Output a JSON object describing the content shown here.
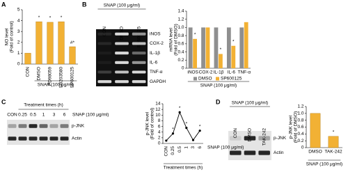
{
  "panel_labels": [
    "A",
    "B",
    "C",
    "D"
  ],
  "blots": [
    {
      "header": "SNAP (100 μg/ml)",
      "lanes": [
        "CON",
        "DMSO",
        "SP600125"
      ],
      "bands": [
        "iNOS",
        "COX-2",
        "IL-1β",
        "IL-6",
        "TNF-α",
        "GAPDH"
      ]
    },
    {
      "header": "Treatment times (h)",
      "note": "SNAP (100 μg/ml)",
      "lanes": [
        "CON",
        "0.25",
        "0.5",
        "1",
        "3",
        "6"
      ],
      "bands": [
        "p-JNK",
        "Actin"
      ]
    },
    {
      "header": "SNAP (100 μg/ml)",
      "lanes": [
        "CON",
        "DMSO",
        "TAK-242"
      ],
      "bands": [
        "p-JNK",
        "Actin"
      ]
    }
  ],
  "chart_data": [
    {
      "type": "bar",
      "ylabel": [
        "NO level",
        "(Fold of control)"
      ],
      "xlabel": "SNAP (100 μg/ml)",
      "categories": [
        "CON",
        "DMSO",
        "PD98059",
        "SB203580",
        "SP600125"
      ],
      "values": [
        1.0,
        3.9,
        3.85,
        3.9,
        1.6
      ],
      "value_notes": [
        null,
        "*",
        "*",
        "*",
        "#*"
      ],
      "color": "#f2b134",
      "ylim": [
        0,
        5
      ],
      "yticks": [
        0,
        1,
        2,
        3,
        4,
        5
      ]
    },
    {
      "type": "grouped_bar",
      "ylabel": [
        "mRNA level",
        "(Fold of DMSO)"
      ],
      "xlabel": "SNAP (100 μg/ml)",
      "categories": [
        "iNOS",
        "COX-2",
        "IL-1β",
        "IL-6",
        "TNF-α"
      ],
      "series": [
        {
          "name": "DMSO",
          "color": "#8f8f8f",
          "values": [
            1.0,
            1.0,
            1.0,
            1.0,
            1.0
          ]
        },
        {
          "name": "SP600125",
          "color": "#f2b134",
          "values": [
            0.72,
            1.0,
            0.35,
            0.55,
            1.13
          ],
          "value_notes": [
            "*",
            null,
            "*",
            "*",
            null
          ]
        }
      ],
      "ylim": [
        0,
        1.4
      ],
      "yticks": [
        {
          "value": 0,
          "label": "0"
        },
        0.2,
        0.4,
        0.6,
        0.8,
        {
          "value": 1,
          "label": "1.0"
        },
        1.2,
        1.4
      ]
    },
    {
      "type": "line",
      "ylabel": [
        "p-JNK level",
        "(Fold of control)"
      ],
      "xlabel": "Treatment times (h)",
      "note": "SNAP (100 μg/ml)",
      "categories": [
        "CON",
        "0.25",
        "0.5",
        "1",
        "3",
        "6"
      ],
      "values": [
        1.0,
        3.5,
        11.0,
        5.5,
        1.2,
        4.5
      ],
      "value_notes": [
        null,
        "*",
        "*",
        "*",
        null,
        "*"
      ],
      "color": "#000000",
      "ylim": [
        0,
        14
      ],
      "yticks": [
        0,
        2,
        4,
        6,
        8,
        10,
        12,
        14
      ]
    },
    {
      "type": "bar",
      "ylabel": [
        "p-JNK level",
        "(Fold of DMSO)"
      ],
      "xlabel": "SNAP (100 μg/ml)",
      "categories": [
        "DMSO",
        "TAK-242"
      ],
      "values": [
        1.0,
        0.33
      ],
      "value_notes": [
        null,
        "*"
      ],
      "color": "#f2b134",
      "ylim": [
        0,
        1.2
      ],
      "yticks": [
        {
          "value": 0,
          "label": "0"
        },
        0.2,
        0.4,
        0.6,
        0.8,
        {
          "value": 1,
          "label": "1.0"
        },
        1.2
      ]
    }
  ]
}
